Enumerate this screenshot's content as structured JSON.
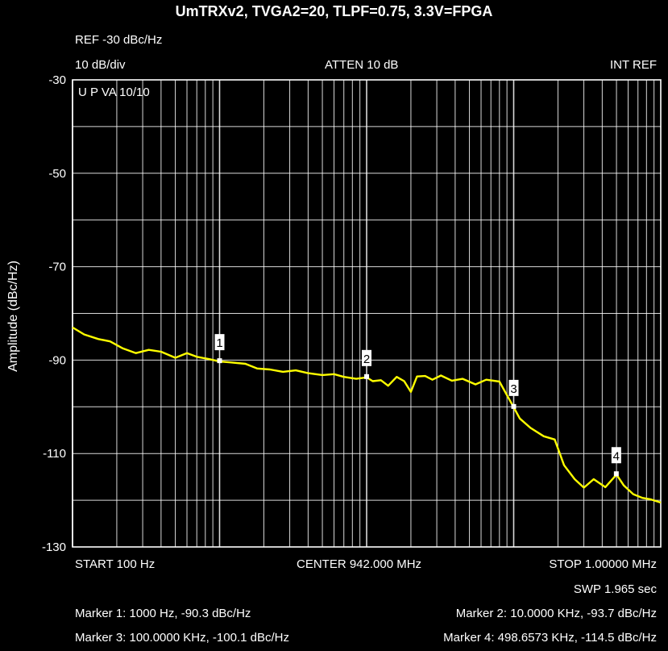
{
  "title": "UmTRXv2, TVGA2=20, TLPF=0.75, 3.3V=FPGA",
  "header": {
    "ref": "REF -30 dBc/Hz",
    "scale": "10 dB/div",
    "atten": "ATTEN 10 dB",
    "int_ref": "INT REF",
    "mode": "U P  VA 10/10"
  },
  "footer": {
    "start": "START 100 Hz",
    "center": "CENTER 942.000 MHz",
    "stop": "STOP 1.00000 MHz",
    "sweep": "SWP 1.965 sec"
  },
  "markers_text": [
    "Marker 1: 1000 Hz, -90.3 dBc/Hz",
    "Marker 2: 10.0000 KHz, -93.7 dBc/Hz",
    "Marker 3: 100.0000 KHz, -100.1 dBc/Hz",
    "Marker 4: 498.6573 KHz, -114.5 dBc/Hz"
  ],
  "colors": {
    "background": "#000000",
    "grid": "#ffffff",
    "trace": "#ffff00"
  },
  "chart_data": {
    "type": "line",
    "title": "UmTRXv2, TVGA2=20, TLPF=0.75, 3.3V=FPGA",
    "xlabel": "",
    "ylabel": "Amplitude (dBc/Hz)",
    "x_scale": "log",
    "xlim": [
      100,
      1000000
    ],
    "ylim": [
      -130,
      -30
    ],
    "yticks": [
      "-30",
      "-50",
      "-70",
      "-90",
      "-110",
      "-130"
    ],
    "ytick_values": [
      -30,
      -50,
      -70,
      -90,
      -110,
      -130
    ],
    "grid": true,
    "series": [
      {
        "x": [
          100,
          120,
          150,
          180,
          220,
          270,
          330,
          400,
          500,
          600,
          700,
          850,
          1000,
          1200,
          1500,
          1800,
          2200,
          2700,
          3300,
          4000,
          5000,
          6000,
          7000,
          8500,
          10000,
          11000,
          12500,
          14000,
          16000,
          18000,
          20000,
          22000,
          25000,
          28000,
          32000,
          38000,
          45000,
          55000,
          65000,
          80000,
          90000,
          100000,
          110000,
          130000,
          160000,
          190000,
          220000,
          260000,
          300000,
          350000,
          420000,
          500000,
          560000,
          650000,
          750000,
          850000,
          1000000
        ],
        "y": [
          -83,
          -84.5,
          -85.5,
          -86,
          -87.5,
          -88.5,
          -87.8,
          -88.2,
          -89.5,
          -88.5,
          -89.3,
          -89.8,
          -90.3,
          -90.5,
          -90.8,
          -91.8,
          -92,
          -92.5,
          -92.2,
          -92.8,
          -93.2,
          -93,
          -93.6,
          -94,
          -93.7,
          -94.5,
          -94.3,
          -95.5,
          -93.6,
          -94.5,
          -96.8,
          -93.5,
          -93.4,
          -94.2,
          -93.3,
          -94.4,
          -94,
          -95.2,
          -94.2,
          -94.6,
          -97.5,
          -100.1,
          -102.5,
          -104.5,
          -106.3,
          -107,
          -112.5,
          -115.5,
          -117.3,
          -115.5,
          -117.2,
          -114.5,
          -116.8,
          -118.7,
          -119.5,
          -119.8,
          -120.5
        ]
      }
    ],
    "markers": [
      {
        "label": "1",
        "x": 1000,
        "y": -90.3
      },
      {
        "label": "2",
        "x": 10000,
        "y": -93.7
      },
      {
        "label": "3",
        "x": 100000,
        "y": -100.1
      },
      {
        "label": "4",
        "x": 498657.3,
        "y": -114.5
      }
    ]
  }
}
